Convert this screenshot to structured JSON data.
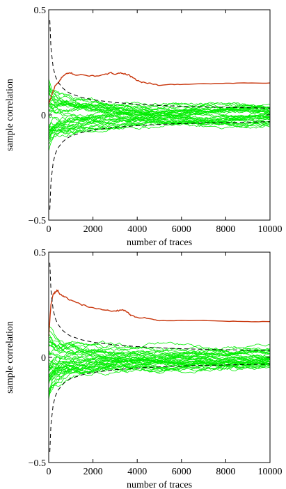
{
  "colors": {
    "accent_series": "#c8360c",
    "noise_series": "#00ee00",
    "bound": "#000000"
  },
  "chart_data": [
    {
      "type": "line",
      "xlabel": "number of traces",
      "ylabel": "sample correlation",
      "xlim": [
        0,
        10000
      ],
      "ylim": [
        -0.5,
        0.5
      ],
      "xticks": [
        0,
        2000,
        4000,
        6000,
        8000,
        10000
      ],
      "xtick_labels": [
        "0",
        "2000",
        "4000",
        "6000",
        "8000",
        "10000"
      ],
      "yticks": [
        -0.5,
        0,
        0.5
      ],
      "ytick_labels": [
        "−0.5",
        "0",
        "0.5"
      ],
      "bound_series": {
        "x": [
          50,
          100,
          200,
          300,
          400,
          600,
          800,
          1000,
          1500,
          2000,
          3000,
          4000,
          5000,
          6000,
          7000,
          8000,
          9000,
          10000
        ],
        "upper": [
          0.45,
          0.32,
          0.226,
          0.185,
          0.16,
          0.131,
          0.113,
          0.101,
          0.083,
          0.072,
          0.059,
          0.051,
          0.045,
          0.041,
          0.038,
          0.036,
          0.034,
          0.032
        ]
      },
      "series": [
        {
          "role": "correct-key",
          "x": [
            0,
            150,
            300,
            450,
            600,
            800,
            1000,
            1200,
            1500,
            2000,
            2500,
            2800,
            3000,
            3300,
            3600,
            3900,
            4200,
            4600,
            5000,
            5500,
            6000,
            7000,
            8000,
            9000,
            10000
          ],
          "values": [
            0.05,
            0.1,
            0.14,
            0.155,
            0.18,
            0.195,
            0.2,
            0.19,
            0.19,
            0.185,
            0.19,
            0.2,
            0.195,
            0.2,
            0.19,
            0.17,
            0.155,
            0.15,
            0.14,
            0.145,
            0.145,
            0.148,
            0.15,
            0.152,
            0.152
          ]
        },
        {
          "role": "wrong-keys",
          "count": 40,
          "start_spread": 0.18,
          "end_spread": 0.035,
          "x": [
            0,
            10000
          ]
        }
      ]
    },
    {
      "type": "line",
      "xlabel": "number of traces",
      "ylabel": "sample correlation",
      "xlim": [
        0,
        10000
      ],
      "ylim": [
        -0.5,
        0.5
      ],
      "xticks": [
        0,
        2000,
        4000,
        6000,
        8000,
        10000
      ],
      "xtick_labels": [
        "0",
        "2000",
        "4000",
        "6000",
        "8000",
        "10000"
      ],
      "yticks": [
        -0.5,
        0,
        0.5
      ],
      "ytick_labels": [
        "−0.5",
        "0",
        "0.5"
      ],
      "bound_series": {
        "x": [
          50,
          100,
          200,
          300,
          400,
          600,
          800,
          1000,
          1500,
          2000,
          3000,
          4000,
          5000,
          6000,
          7000,
          8000,
          9000,
          10000
        ],
        "upper": [
          0.45,
          0.32,
          0.226,
          0.185,
          0.16,
          0.131,
          0.113,
          0.101,
          0.083,
          0.072,
          0.059,
          0.051,
          0.045,
          0.041,
          0.038,
          0.036,
          0.034,
          0.032
        ]
      },
      "series": [
        {
          "role": "correct-key",
          "x": [
            0,
            100,
            200,
            300,
            400,
            500,
            700,
            1000,
            1500,
            2000,
            2500,
            3000,
            3300,
            3500,
            3700,
            4000,
            4500,
            5000,
            6000,
            7000,
            8000,
            9000,
            10000
          ],
          "values": [
            0.1,
            0.25,
            0.3,
            0.31,
            0.32,
            0.3,
            0.29,
            0.27,
            0.25,
            0.235,
            0.225,
            0.22,
            0.225,
            0.22,
            0.2,
            0.19,
            0.185,
            0.175,
            0.175,
            0.175,
            0.172,
            0.17,
            0.17
          ]
        },
        {
          "role": "wrong-keys",
          "count": 40,
          "start_spread": 0.2,
          "end_spread": 0.035,
          "x": [
            0,
            10000
          ]
        }
      ]
    }
  ]
}
